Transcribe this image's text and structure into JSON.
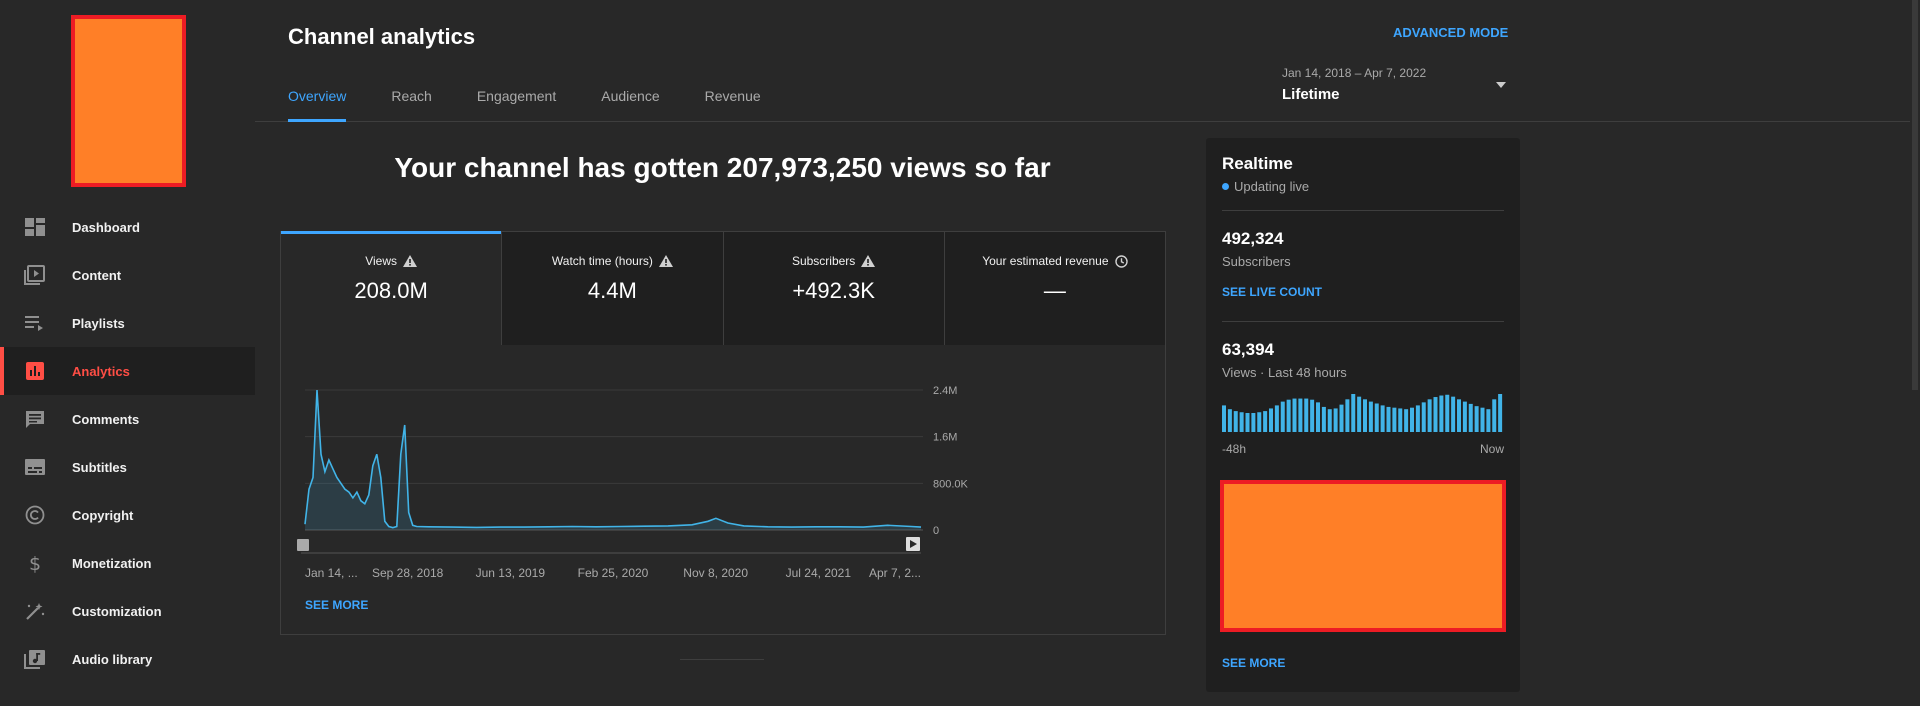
{
  "sidebar": {
    "items": [
      {
        "label": "Dashboard",
        "icon": "dashboard-icon"
      },
      {
        "label": "Content",
        "icon": "content-icon"
      },
      {
        "label": "Playlists",
        "icon": "playlists-icon"
      },
      {
        "label": "Analytics",
        "icon": "analytics-icon",
        "active": true
      },
      {
        "label": "Comments",
        "icon": "comments-icon"
      },
      {
        "label": "Subtitles",
        "icon": "subtitles-icon"
      },
      {
        "label": "Copyright",
        "icon": "copyright-icon"
      },
      {
        "label": "Monetization",
        "icon": "dollar-icon"
      },
      {
        "label": "Customization",
        "icon": "magic-wand-icon"
      },
      {
        "label": "Audio library",
        "icon": "audio-library-icon"
      }
    ]
  },
  "header": {
    "title": "Channel analytics",
    "advanced_mode": "ADVANCED MODE",
    "tabs": [
      {
        "label": "Overview",
        "active": true
      },
      {
        "label": "Reach"
      },
      {
        "label": "Engagement"
      },
      {
        "label": "Audience"
      },
      {
        "label": "Revenue"
      }
    ],
    "date_range": {
      "range": "Jan 14, 2018 – Apr 7, 2022",
      "label": "Lifetime"
    }
  },
  "main": {
    "headline": "Your channel has gotten 207,973,250 views so far",
    "metrics": [
      {
        "label": "Views",
        "value": "208.0M",
        "icon": "warning-icon",
        "active": true
      },
      {
        "label": "Watch time (hours)",
        "value": "4.4M",
        "icon": "warning-icon"
      },
      {
        "label": "Subscribers",
        "value": "+492.3K",
        "icon": "warning-icon"
      },
      {
        "label": "Your estimated revenue",
        "value": "—",
        "icon": "clock-icon"
      }
    ],
    "see_more": "SEE MORE"
  },
  "chart_data": {
    "type": "area",
    "x_tick_labels": [
      "Jan 14, ...",
      "Sep 28, 2018",
      "Jun 13, 2019",
      "Feb 25, 2020",
      "Nov 8, 2020",
      "Jul 24, 2021",
      "Apr 7, 2..."
    ],
    "y_tick_labels": [
      "2.4M",
      "1.6M",
      "800.0K",
      "0"
    ],
    "ylim": [
      0,
      2400000
    ],
    "y_unit_max": 2400000,
    "x": [
      "2018-01-14",
      "2018-01-24",
      "2018-02-03",
      "2018-02-13",
      "2018-02-23",
      "2018-03-05",
      "2018-03-15",
      "2018-03-25",
      "2018-04-04",
      "2018-04-14",
      "2018-04-24",
      "2018-05-04",
      "2018-05-14",
      "2018-05-24",
      "2018-06-03",
      "2018-06-13",
      "2018-06-23",
      "2018-07-03",
      "2018-07-13",
      "2018-07-23",
      "2018-08-02",
      "2018-08-12",
      "2018-08-22",
      "2018-09-01",
      "2018-09-11",
      "2018-09-21",
      "2018-10-01",
      "2018-10-11",
      "2018-10-21",
      "2018-11-20",
      "2019-01-19",
      "2019-03-20",
      "2019-05-19",
      "2019-07-18",
      "2019-09-16",
      "2019-11-15",
      "2020-01-14",
      "2020-03-14",
      "2020-05-13",
      "2020-07-12",
      "2020-09-10",
      "2020-10-20",
      "2020-11-09",
      "2020-12-09",
      "2021-01-18",
      "2021-03-19",
      "2021-05-18",
      "2021-07-17",
      "2021-09-15",
      "2021-11-14",
      "2022-01-13",
      "2022-03-14",
      "2022-04-07"
    ],
    "series": [
      {
        "values": [
          100000,
          700000,
          900000,
          2400000,
          1300000,
          1000000,
          1200000,
          1050000,
          900000,
          800000,
          700000,
          650000,
          550000,
          650000,
          500000,
          450000,
          600000,
          1100000,
          1300000,
          900000,
          150000,
          60000,
          40000,
          60000,
          1300000,
          1800000,
          300000,
          80000,
          60000,
          55000,
          50000,
          45000,
          50000,
          50000,
          55000,
          60000,
          55000,
          60000,
          65000,
          70000,
          90000,
          150000,
          200000,
          120000,
          70000,
          55000,
          50000,
          55000,
          55000,
          50000,
          80000,
          60000,
          50000
        ]
      }
    ]
  },
  "realtime": {
    "title": "Realtime",
    "status": "Updating live",
    "subscribers_count": "492,324",
    "subscribers_label": "Subscribers",
    "see_live_count": "SEE LIVE COUNT",
    "views_count": "63,394",
    "views_label": "Views · Last 48 hours",
    "bars": [
      0.7,
      0.6,
      0.55,
      0.52,
      0.5,
      0.5,
      0.52,
      0.55,
      0.62,
      0.7,
      0.8,
      0.85,
      0.88,
      0.88,
      0.88,
      0.85,
      0.78,
      0.66,
      0.6,
      0.62,
      0.72,
      0.86,
      1.0,
      0.93,
      0.86,
      0.8,
      0.75,
      0.7,
      0.66,
      0.64,
      0.62,
      0.6,
      0.64,
      0.7,
      0.78,
      0.86,
      0.92,
      0.96,
      0.98,
      0.93,
      0.86,
      0.8,
      0.74,
      0.68,
      0.64,
      0.6,
      0.86,
      1.0
    ],
    "axis_start": "-48h",
    "axis_end": "Now",
    "see_more": "SEE MORE"
  },
  "colors": {
    "accent": "#3ea6ff",
    "active_nav": "#ff4e45",
    "chart_line": "#41b4e8",
    "redaction_fill": "#ff7f27",
    "redaction_border": "#ed1c24"
  }
}
